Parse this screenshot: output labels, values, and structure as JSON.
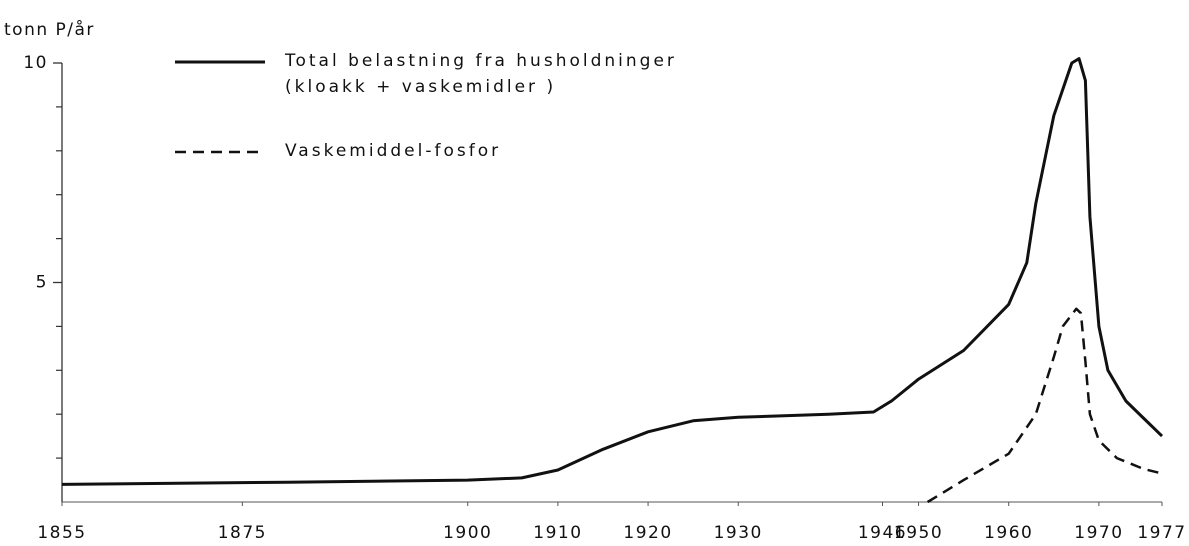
{
  "chart_data": {
    "type": "line",
    "y_label": "tonn P/år",
    "xlim": [
      1855,
      1977
    ],
    "xticks": [
      1855,
      1875,
      1900,
      1910,
      1920,
      1930,
      1946,
      1950,
      1960,
      1970,
      1977
    ],
    "ylim": [
      0,
      10
    ],
    "yticks": [
      5,
      10
    ],
    "yminorticks": [
      1,
      2,
      3,
      4,
      6,
      7,
      8,
      9
    ],
    "series": [
      {
        "name": "Total belastning fra husholdninger\n(kloakk + vaskemidler )",
        "color": "#111111",
        "dash": "solid",
        "x": [
          1855,
          1880,
          1900,
          1906,
          1910,
          1915,
          1920,
          1925,
          1930,
          1940,
          1945,
          1947,
          1950,
          1955,
          1960,
          1962,
          1963,
          1965,
          1967,
          1967.8,
          1968.5,
          1969,
          1970,
          1971,
          1973,
          1977
        ],
        "values": [
          0.4,
          0.45,
          0.5,
          0.55,
          0.73,
          1.2,
          1.6,
          1.85,
          1.93,
          2.0,
          2.05,
          2.3,
          2.8,
          3.45,
          4.5,
          5.45,
          6.8,
          8.8,
          10.0,
          10.1,
          9.6,
          6.5,
          4.0,
          3.0,
          2.3,
          1.5
        ]
      },
      {
        "name": "Vaskemiddel-fosfor",
        "color": "#111111",
        "dash": "dashed",
        "x": [
          1951,
          1955,
          1960,
          1963,
          1965,
          1966,
          1967.5,
          1968,
          1968.5,
          1969,
          1970,
          1972,
          1975,
          1977
        ],
        "values": [
          0,
          0.5,
          1.1,
          2.0,
          3.3,
          4.0,
          4.4,
          4.3,
          3.2,
          2.0,
          1.4,
          1.0,
          0.75,
          0.65
        ]
      }
    ]
  }
}
